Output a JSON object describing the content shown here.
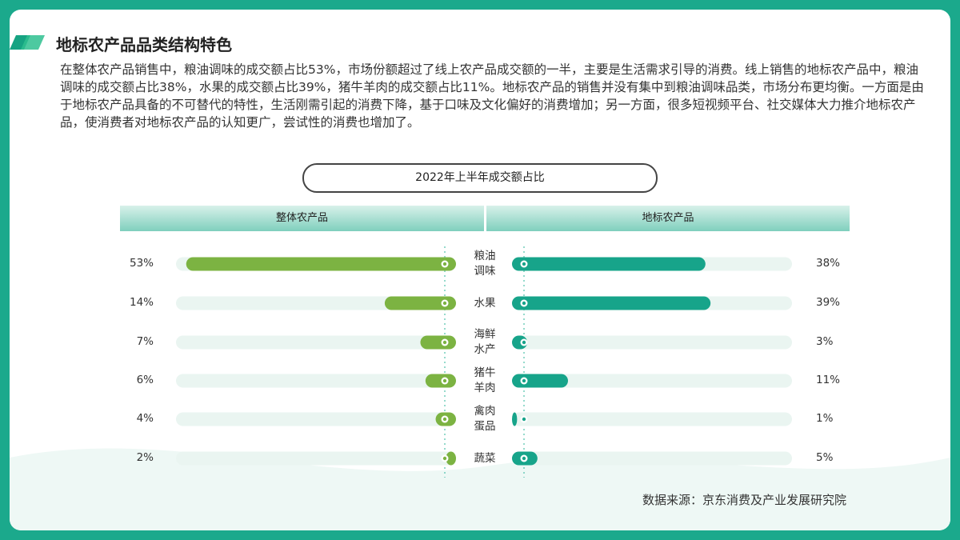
{
  "chart_data": {
    "type": "butterfly",
    "title": "地标农产品品类结构特色",
    "description": "在整体农产品销售中，粮油调味的成交额占比53%，市场份额超过了线上农产品成交额的一半，主要是生活需求引导的消费。线上销售的地标农产品中，粮油调味的成交额占比38%，水果的成交额占比39%，猪牛羊肉的成交额占比11%。地标农产品的销售并没有集中到粮油调味品类，市场分布更均衡。一方面是由于地标农产品具备的不可替代的特性，生活刚需引起的消费下降，基于口味及文化偏好的消费增加；另一方面，很多短视频平台、社交媒体大力推介地标农产品，使消费者对地标农产品的认知更广，尝试性的消费也增加了。",
    "subtitle": "2022年上半年成交额占比",
    "categories": [
      "粮油调味",
      "水果",
      "海鲜水产",
      "猪牛羊肉",
      "禽肉蛋品",
      "蔬菜"
    ],
    "xlim": [
      0,
      55
    ],
    "series": [
      {
        "name": "整体农产品",
        "color": "#7cb342",
        "values": [
          53,
          14,
          7,
          6,
          4,
          2
        ],
        "value_labels": [
          "53%",
          "14%",
          "7%",
          "6%",
          "4%",
          "2%"
        ]
      },
      {
        "name": "地标农产品",
        "color": "#17a48a",
        "values": [
          38,
          39,
          3,
          11,
          1,
          5
        ],
        "value_labels": [
          "38%",
          "39%",
          "3%",
          "11%",
          "1%",
          "5%"
        ]
      }
    ],
    "source": "数据来源：京东消费及产业发展研究院"
  }
}
